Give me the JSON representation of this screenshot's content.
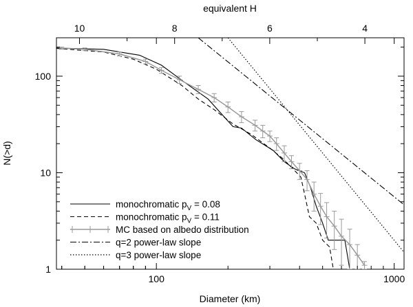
{
  "chart_data": {
    "type": "line",
    "xlabel": "Diameter (km)",
    "ylabel": "N(>d)",
    "top_xlabel": "equivalent H",
    "xscale": "log",
    "yscale": "log",
    "xlim": [
      38,
      1100
    ],
    "ylim": [
      1,
      250
    ],
    "x_ticks": [
      {
        "value": 100,
        "label": "100"
      },
      {
        "value": 1000,
        "label": "1000"
      }
    ],
    "y_ticks": [
      {
        "value": 1,
        "label": "1"
      },
      {
        "value": 10,
        "label": "10"
      },
      {
        "value": 100,
        "label": "100"
      }
    ],
    "top_ticks": [
      {
        "value": 10,
        "label": "10"
      },
      {
        "value": 8,
        "label": "8"
      },
      {
        "value": 6,
        "label": "6"
      },
      {
        "value": 4,
        "label": "4"
      }
    ],
    "grid": false,
    "legend_position": "bottom-left",
    "legend_label_parts": [
      {
        "pre": "monochromatic p",
        "sub": "V",
        "post": " = 0.08"
      },
      {
        "pre": "monochromatic p",
        "sub": "V",
        "post": " = 0.11"
      },
      {
        "pre": "MC based on albedo distribution",
        "sub": "",
        "post": ""
      },
      {
        "pre": "q=2 power-law slope",
        "sub": "",
        "post": ""
      },
      {
        "pre": "q=3 power-law slope",
        "sub": "",
        "post": ""
      }
    ],
    "series": [
      {
        "style": "solid",
        "color": "#000000",
        "points": [
          [
            38,
            196
          ],
          [
            60,
            190
          ],
          [
            85,
            165
          ],
          [
            105,
            130
          ],
          [
            130,
            88
          ],
          [
            165,
            58
          ],
          [
            210,
            30
          ],
          [
            228,
            29
          ],
          [
            262,
            22
          ],
          [
            310,
            17
          ],
          [
            345,
            13
          ],
          [
            380,
            11
          ],
          [
            420,
            10
          ],
          [
            445,
            7
          ],
          [
            470,
            4.5
          ],
          [
            500,
            3
          ],
          [
            528,
            2
          ],
          [
            620,
            2
          ],
          [
            650,
            1
          ]
        ]
      },
      {
        "style": "dashed",
        "color": "#000000",
        "points": [
          [
            38,
            194
          ],
          [
            60,
            178
          ],
          [
            80,
            150
          ],
          [
            100,
            118
          ],
          [
            128,
            80
          ],
          [
            150,
            58
          ],
          [
            175,
            45
          ],
          [
            210,
            32
          ],
          [
            250,
            25
          ],
          [
            300,
            18
          ],
          [
            340,
            14
          ],
          [
            375,
            11
          ],
          [
            405,
            9
          ],
          [
            420,
            6
          ],
          [
            440,
            3.5
          ],
          [
            470,
            3
          ],
          [
            500,
            2
          ],
          [
            535,
            1.7
          ],
          [
            555,
            1
          ]
        ]
      },
      {
        "style": "solid-errorbars",
        "color": "#999999",
        "points": [
          [
            40,
            195,
            5
          ],
          [
            50,
            190,
            6
          ],
          [
            70,
            170,
            8
          ],
          [
            90,
            142,
            8
          ],
          [
            105,
            115,
            8
          ],
          [
            125,
            92,
            8
          ],
          [
            150,
            73,
            7
          ],
          [
            175,
            60,
            6
          ],
          [
            200,
            48,
            6
          ],
          [
            228,
            38,
            5
          ],
          [
            260,
            31,
            4
          ],
          [
            280,
            27,
            4
          ],
          [
            300,
            24,
            3
          ],
          [
            320,
            20,
            3
          ],
          [
            345,
            16,
            3
          ],
          [
            370,
            13,
            2
          ],
          [
            400,
            10.5,
            2
          ],
          [
            430,
            8.5,
            2
          ],
          [
            460,
            6,
            2
          ],
          [
            490,
            4.5,
            1.6
          ],
          [
            520,
            3.5,
            1.4
          ],
          [
            560,
            2.8,
            1.2
          ],
          [
            600,
            2.2,
            1.1
          ],
          [
            650,
            1.8,
            0.8
          ],
          [
            700,
            1.4,
            0.4
          ],
          [
            750,
            1.1,
            0.1
          ]
        ]
      },
      {
        "style": "dash-dot",
        "color": "#000000",
        "points": [
          [
            150,
            250
          ],
          [
            1100,
            4.65
          ]
        ]
      },
      {
        "style": "dotted",
        "color": "#000000",
        "points": [
          [
            200,
            250
          ],
          [
            1100,
            1.5
          ]
        ]
      }
    ]
  }
}
